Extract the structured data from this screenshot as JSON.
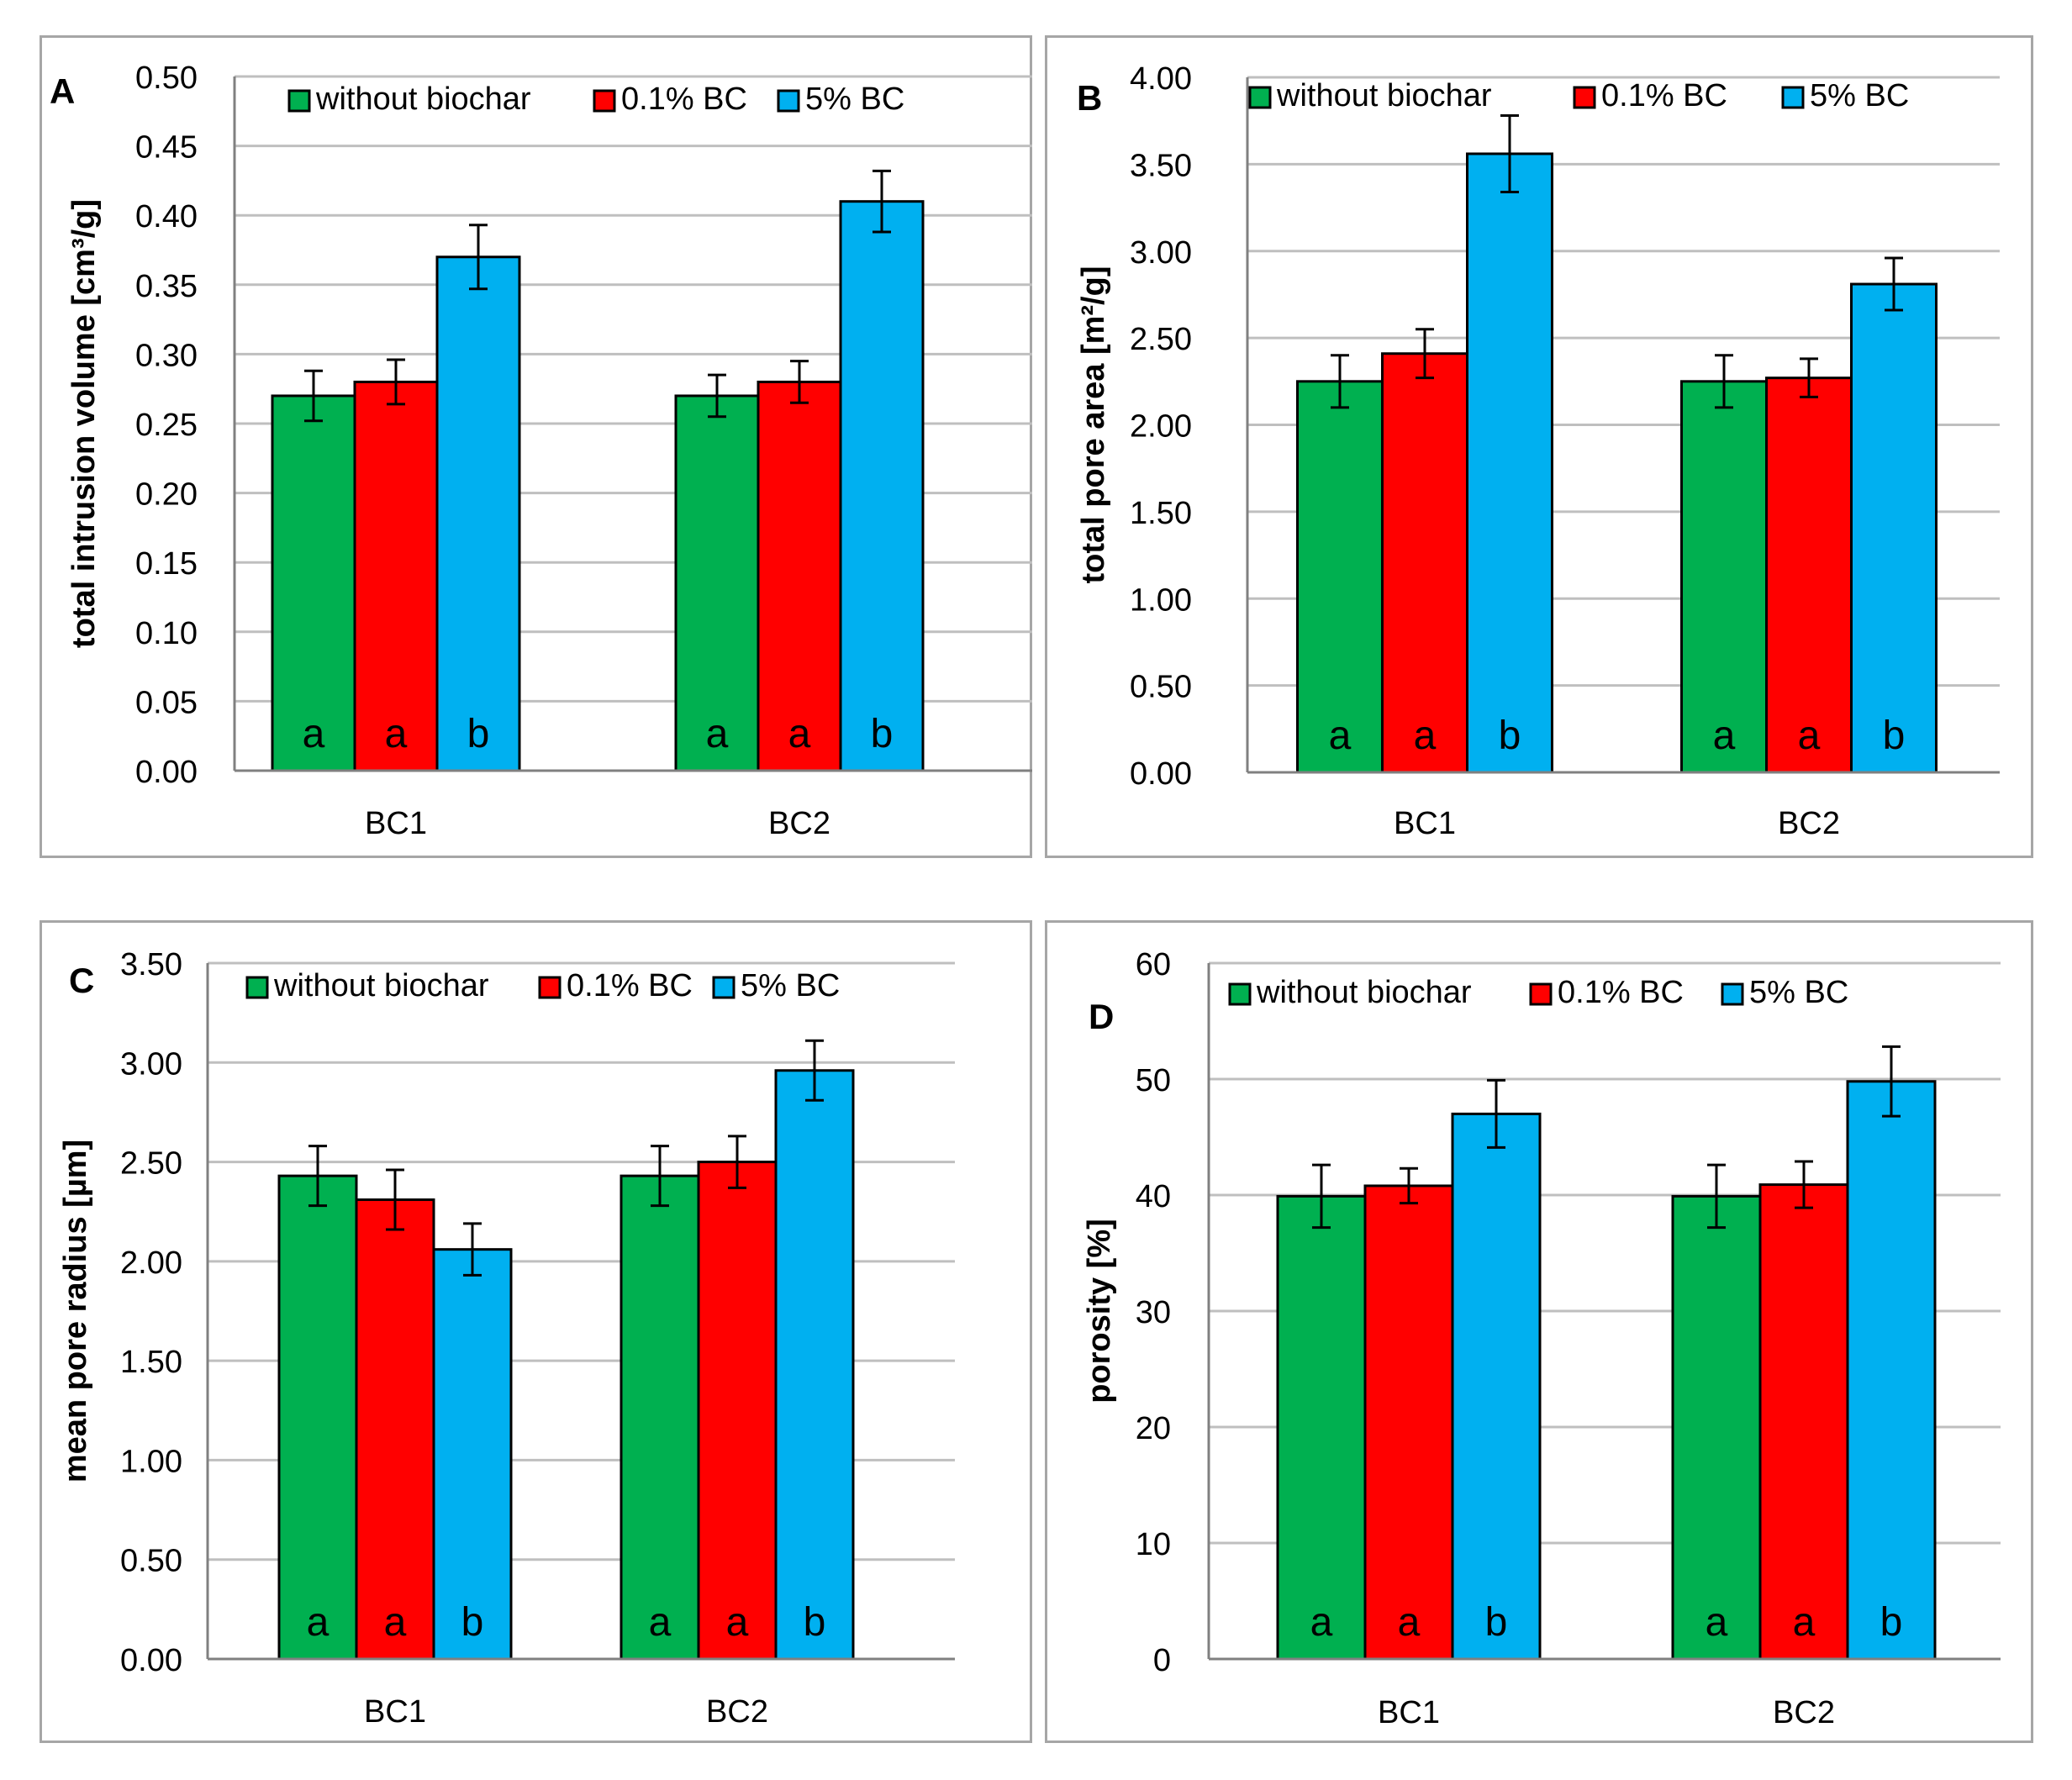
{
  "colors": {
    "s0": "#00b050",
    "s1": "#ff0000",
    "s2": "#00b0f0",
    "grid": "#bfbfbf",
    "axis": "#808080",
    "frame": "#a6a6a6"
  },
  "chart_data": [
    {
      "type": "bar",
      "panel_label": "A",
      "ylabel": "total intrusion volume [cm³/g]",
      "categories": [
        "BC1",
        "BC2"
      ],
      "ylim": [
        0,
        0.5
      ],
      "yticks": [
        "0.00",
        "0.05",
        "0.10",
        "0.15",
        "0.20",
        "0.25",
        "0.30",
        "0.35",
        "0.40",
        "0.45",
        "0.50"
      ],
      "legend": [
        "without biochar",
        "0.1% BC",
        "5% BC"
      ],
      "series": [
        {
          "name": "without biochar",
          "values": [
            0.27,
            0.27
          ],
          "errors": [
            0.018,
            0.015
          ],
          "letters": [
            "a",
            "a"
          ]
        },
        {
          "name": "0.1% BC",
          "values": [
            0.28,
            0.28
          ],
          "errors": [
            0.016,
            0.015
          ],
          "letters": [
            "a",
            "a"
          ]
        },
        {
          "name": "5% BC",
          "values": [
            0.37,
            0.41
          ],
          "errors": [
            0.023,
            0.022
          ],
          "letters": [
            "b",
            "b"
          ]
        }
      ]
    },
    {
      "type": "bar",
      "panel_label": "B",
      "ylabel": "total pore area [m²/g]",
      "categories": [
        "BC1",
        "BC2"
      ],
      "ylim": [
        0,
        4
      ],
      "yticks": [
        "0.00",
        "0.50",
        "1.00",
        "1.50",
        "2.00",
        "2.50",
        "3.00",
        "3.50",
        "4.00"
      ],
      "legend": [
        "without biochar",
        "0.1% BC",
        "5% BC"
      ],
      "series": [
        {
          "name": "without biochar",
          "values": [
            2.25,
            2.25
          ],
          "errors": [
            0.15,
            0.15
          ],
          "letters": [
            "a",
            "a"
          ]
        },
        {
          "name": "0.1% BC",
          "values": [
            2.41,
            2.27
          ],
          "errors": [
            0.14,
            0.11
          ],
          "letters": [
            "a",
            "a"
          ]
        },
        {
          "name": "5% BC",
          "values": [
            3.56,
            2.81
          ],
          "errors": [
            0.22,
            0.15
          ],
          "letters": [
            "b",
            "b"
          ]
        }
      ]
    },
    {
      "type": "bar",
      "panel_label": "C",
      "ylabel": "mean pore radius [µm]",
      "categories": [
        "BC1",
        "BC2"
      ],
      "ylim": [
        0,
        3.5
      ],
      "yticks": [
        "0.00",
        "0.50",
        "1.00",
        "1.50",
        "2.00",
        "2.50",
        "3.00",
        "3.50"
      ],
      "legend": [
        "without biochar",
        "0.1% BC",
        "5% BC"
      ],
      "series": [
        {
          "name": "without biochar",
          "values": [
            2.43,
            2.43
          ],
          "errors": [
            0.15,
            0.15
          ],
          "letters": [
            "a",
            "a"
          ]
        },
        {
          "name": "0.1% BC",
          "values": [
            2.31,
            2.5
          ],
          "errors": [
            0.15,
            0.13
          ],
          "letters": [
            "a",
            "a"
          ]
        },
        {
          "name": "5% BC",
          "values": [
            2.06,
            2.96
          ],
          "errors": [
            0.13,
            0.15
          ],
          "letters": [
            "b",
            "b"
          ]
        }
      ]
    },
    {
      "type": "bar",
      "panel_label": "D",
      "ylabel": "porosity [%]",
      "categories": [
        "BC1",
        "BC2"
      ],
      "ylim": [
        0,
        60
      ],
      "yticks": [
        "0",
        "10",
        "20",
        "30",
        "40",
        "50",
        "60"
      ],
      "legend": [
        "without biochar",
        "0.1% BC",
        "5% BC"
      ],
      "series": [
        {
          "name": "without biochar",
          "values": [
            39.9,
            39.9
          ],
          "errors": [
            2.7,
            2.7
          ],
          "letters": [
            "a",
            "a"
          ]
        },
        {
          "name": "0.1% BC",
          "values": [
            40.8,
            40.9
          ],
          "errors": [
            1.5,
            2.0
          ],
          "letters": [
            "a",
            "a"
          ]
        },
        {
          "name": "5% BC",
          "values": [
            47.0,
            49.8
          ],
          "errors": [
            2.9,
            3.0
          ],
          "letters": [
            "b",
            "b"
          ]
        }
      ]
    }
  ]
}
